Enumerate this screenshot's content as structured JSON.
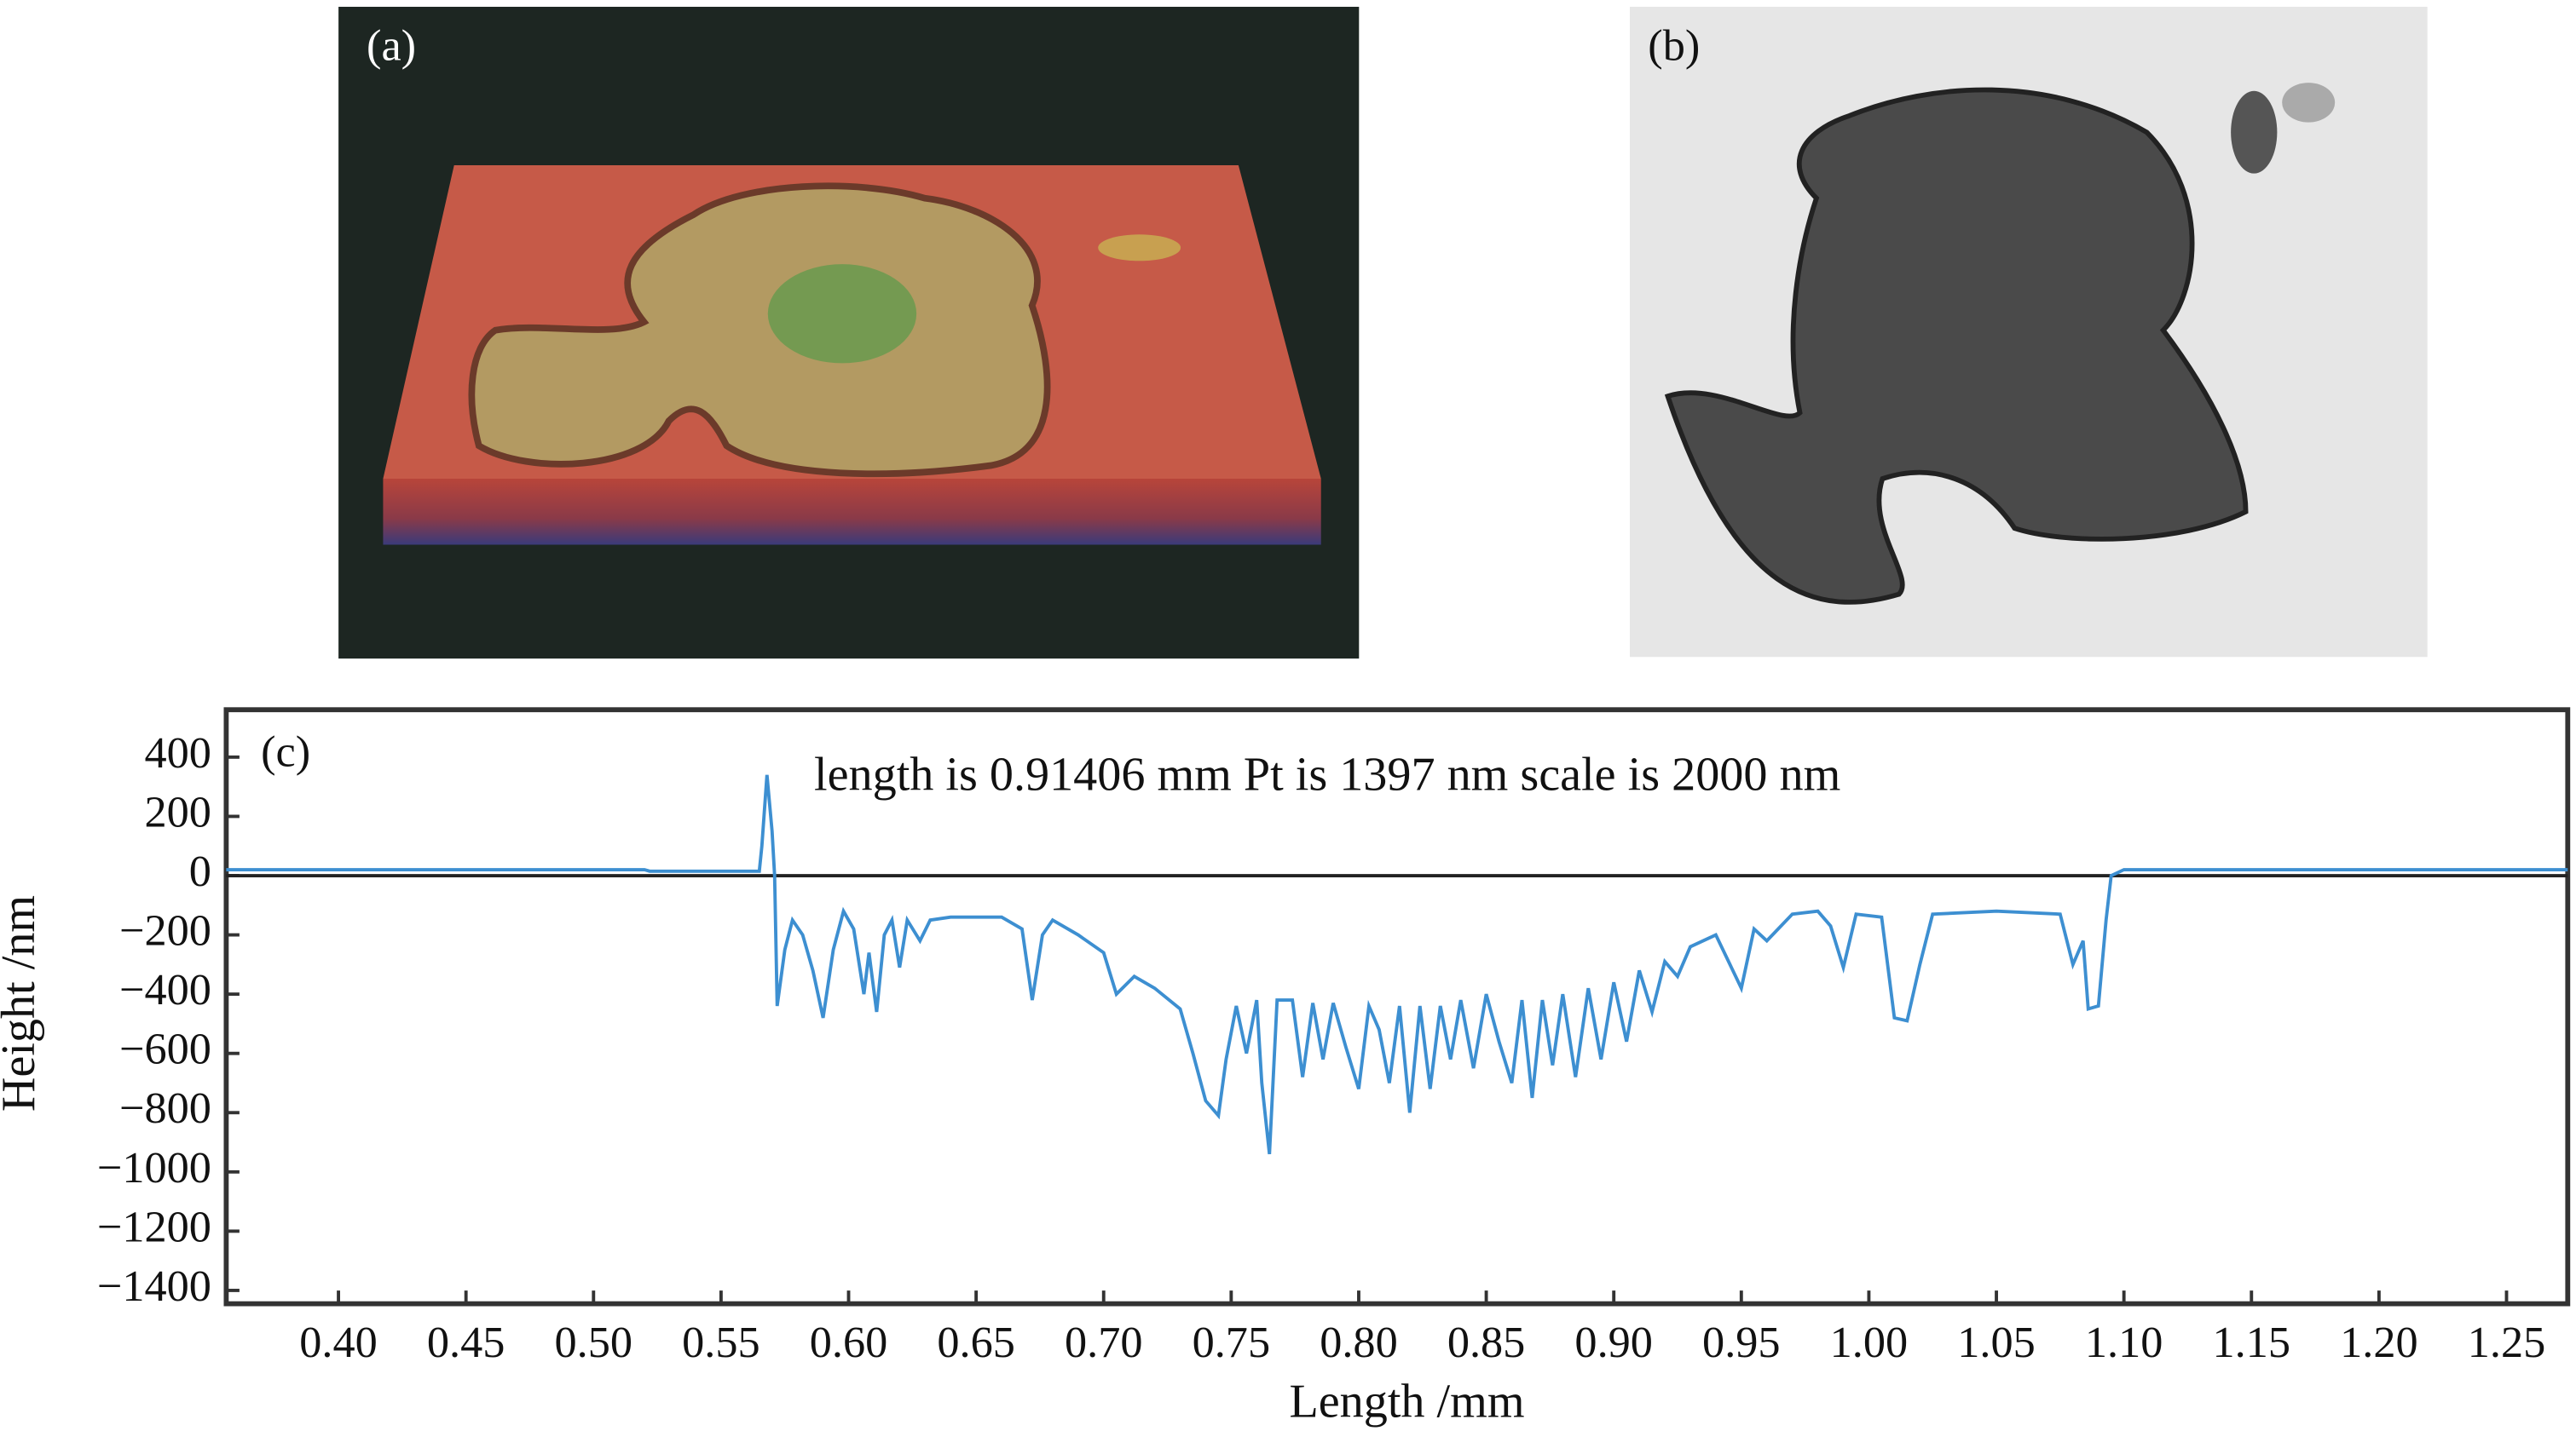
{
  "panels": [
    {
      "label": "(a)"
    },
    {
      "label": "(b)"
    }
  ],
  "chart_data": {
    "type": "line",
    "panel_label": "(c)",
    "annotation": "length is 0.91406 mm  Pt is 1397 nm  scale is 2000 nm",
    "x_label": "Length /mm",
    "y_label": "Height /nm",
    "color": "#3d8fd1",
    "xlim": [
      0.356,
      1.274
    ],
    "ylim": [
      -1445,
      560
    ],
    "xticks": [
      {
        "value": 0.4,
        "label": "0.40"
      },
      {
        "value": 0.45,
        "label": "0.45"
      },
      {
        "value": 0.5,
        "label": "0.50"
      },
      {
        "value": 0.55,
        "label": "0.55"
      },
      {
        "value": 0.6,
        "label": "0.60"
      },
      {
        "value": 0.65,
        "label": "0.65"
      },
      {
        "value": 0.7,
        "label": "0.70"
      },
      {
        "value": 0.75,
        "label": "0.75"
      },
      {
        "value": 0.8,
        "label": "0.80"
      },
      {
        "value": 0.85,
        "label": "0.85"
      },
      {
        "value": 0.9,
        "label": "0.90"
      },
      {
        "value": 0.95,
        "label": "0.95"
      },
      {
        "value": 1.0,
        "label": "1.00"
      },
      {
        "value": 1.05,
        "label": "1.05"
      },
      {
        "value": 1.1,
        "label": "1.10"
      },
      {
        "value": 1.15,
        "label": "1.15"
      },
      {
        "value": 1.2,
        "label": "1.20"
      },
      {
        "value": 1.25,
        "label": "1.25"
      }
    ],
    "yticks": [
      400,
      200,
      0,
      {
        "value": -200,
        "label": "−200"
      },
      {
        "value": -400,
        "label": "−400"
      },
      {
        "value": -600,
        "label": "−600"
      },
      {
        "value": -800,
        "label": "−800"
      },
      {
        "value": -1000,
        "label": "−1000"
      },
      {
        "value": -1200,
        "label": "−1200"
      },
      {
        "value": -1400,
        "label": "−1400"
      }
    ],
    "x": [
      0.356,
      0.52,
      0.522,
      0.565,
      0.566,
      0.568,
      0.57,
      0.571,
      0.572,
      0.575,
      0.578,
      0.582,
      0.586,
      0.59,
      0.594,
      0.598,
      0.602,
      0.606,
      0.608,
      0.611,
      0.614,
      0.617,
      0.62,
      0.623,
      0.628,
      0.632,
      0.64,
      0.66,
      0.668,
      0.672,
      0.676,
      0.68,
      0.69,
      0.7,
      0.705,
      0.712,
      0.72,
      0.73,
      0.735,
      0.74,
      0.745,
      0.748,
      0.752,
      0.756,
      0.76,
      0.762,
      0.765,
      0.768,
      0.774,
      0.778,
      0.782,
      0.786,
      0.79,
      0.795,
      0.8,
      0.804,
      0.808,
      0.812,
      0.816,
      0.82,
      0.824,
      0.828,
      0.832,
      0.836,
      0.84,
      0.845,
      0.85,
      0.855,
      0.86,
      0.864,
      0.868,
      0.872,
      0.876,
      0.88,
      0.885,
      0.89,
      0.895,
      0.9,
      0.905,
      0.91,
      0.915,
      0.92,
      0.925,
      0.93,
      0.94,
      0.95,
      0.955,
      0.96,
      0.97,
      0.98,
      0.985,
      0.99,
      0.995,
      1.005,
      1.01,
      1.015,
      1.02,
      1.025,
      1.05,
      1.075,
      1.08,
      1.084,
      1.086,
      1.09,
      1.093,
      1.095,
      1.1,
      1.274
    ],
    "values": [
      20,
      20,
      15,
      15,
      100,
      340,
      150,
      0,
      -440,
      -250,
      -150,
      -200,
      -320,
      -480,
      -250,
      -120,
      -180,
      -400,
      -260,
      -460,
      -200,
      -150,
      -310,
      -150,
      -220,
      -150,
      -140,
      -140,
      -180,
      -420,
      -200,
      -150,
      -200,
      -260,
      -400,
      -340,
      -380,
      -450,
      -600,
      -760,
      -810,
      -620,
      -440,
      -600,
      -420,
      -700,
      -940,
      -420,
      -420,
      -680,
      -430,
      -620,
      -430,
      -580,
      -720,
      -440,
      -520,
      -700,
      -440,
      -800,
      -440,
      -720,
      -440,
      -620,
      -420,
      -650,
      -400,
      -560,
      -700,
      -420,
      -750,
      -420,
      -640,
      -400,
      -680,
      -380,
      -620,
      -360,
      -560,
      -320,
      -460,
      -290,
      -340,
      -240,
      -200,
      -380,
      -180,
      -220,
      -130,
      -120,
      -170,
      -310,
      -130,
      -140,
      -480,
      -490,
      -300,
      -130,
      -120,
      -130,
      -300,
      -220,
      -450,
      -440,
      -150,
      0,
      20,
      20
    ]
  }
}
